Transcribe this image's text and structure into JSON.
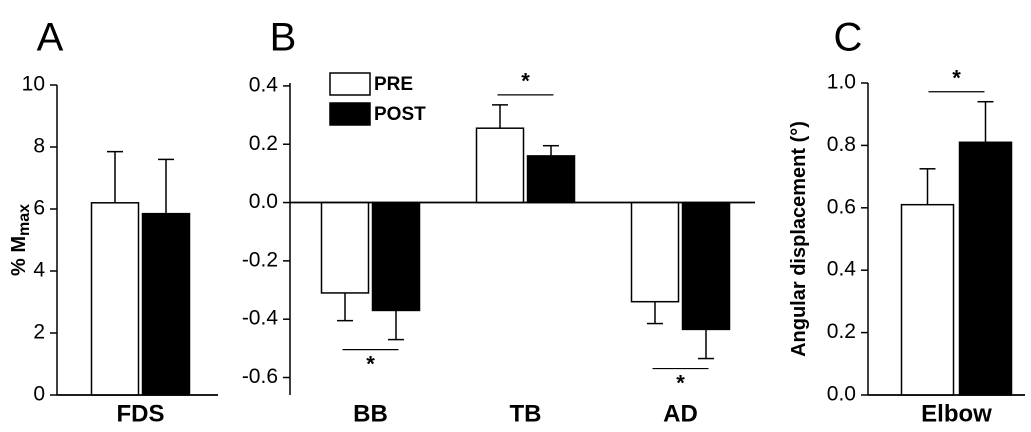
{
  "chart_data": [
    {
      "type": "bar",
      "title": "A",
      "ylabel": "% M",
      "ylabel_subscript": "max",
      "categories": [
        "FDS"
      ],
      "series": [
        {
          "name": "PRE",
          "color": "#ffffff",
          "values": [
            6.2
          ],
          "errors": [
            1.65
          ]
        },
        {
          "name": "POST",
          "color": "#000000",
          "values": [
            5.85
          ],
          "errors": [
            1.75
          ]
        }
      ],
      "ylim": [
        0,
        10
      ],
      "yticks": [
        0,
        2,
        4,
        6,
        8,
        10
      ]
    },
    {
      "type": "bar",
      "title": "B",
      "categories": [
        "BB",
        "TB",
        "AD"
      ],
      "series": [
        {
          "name": "PRE",
          "color": "#ffffff",
          "values": [
            -0.31,
            0.255,
            -0.34
          ],
          "errors": [
            0.095,
            0.08,
            0.075
          ]
        },
        {
          "name": "POST",
          "color": "#000000",
          "values": [
            -0.37,
            0.16,
            -0.435
          ],
          "errors": [
            0.1,
            0.035,
            0.1
          ]
        }
      ],
      "ylim": [
        -0.66,
        0.41
      ],
      "yticks": [
        -0.6,
        -0.4,
        -0.2,
        {
          "value": 0,
          "label": "0.0"
        },
        0.2,
        0.4
      ],
      "legend": "top-left",
      "annotations": [
        {
          "text": "*",
          "category": "BB"
        },
        {
          "text": "*",
          "category": "TB"
        },
        {
          "text": "*",
          "category": "AD"
        }
      ]
    },
    {
      "type": "bar",
      "title": "C",
      "ylabel": "Angular displacement (°)",
      "categories": [
        "Elbow"
      ],
      "series": [
        {
          "name": "PRE",
          "color": "#ffffff",
          "values": [
            0.61
          ],
          "errors": [
            0.115
          ]
        },
        {
          "name": "POST",
          "color": "#000000",
          "values": [
            0.81
          ],
          "errors": [
            0.13
          ]
        }
      ],
      "ylim": [
        0,
        1.0
      ],
      "yticks": [
        {
          "value": 0,
          "label": "0.0"
        },
        0.2,
        0.4,
        0.6,
        0.8,
        {
          "value": 1,
          "label": "1.0"
        }
      ],
      "annotations": [
        {
          "text": "*",
          "category": "Elbow"
        }
      ]
    }
  ]
}
